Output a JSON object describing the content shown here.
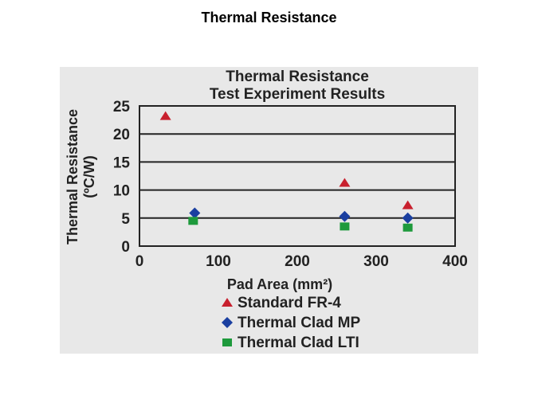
{
  "slide": {
    "title": "Thermal Resistance"
  },
  "chart_data": {
    "type": "scatter",
    "title_lines": [
      "Thermal Resistance",
      "Test Experiment Results"
    ],
    "xlabel": "Pad Area (mm²)",
    "ylabel_lines": [
      "Thermal Resistance",
      "(ºC/W)"
    ],
    "xlim": [
      0,
      400
    ],
    "ylim": [
      0,
      25
    ],
    "xticks": [
      0,
      100,
      200,
      300,
      400
    ],
    "yticks": [
      0,
      5,
      10,
      15,
      20,
      25
    ],
    "grid": "horizontal",
    "legend_position": "bottom",
    "series": [
      {
        "name": "Standard FR-4",
        "marker": "triangle",
        "color": "#c8202e",
        "points": [
          {
            "x": 33,
            "y": 23.2
          },
          {
            "x": 260,
            "y": 11.3
          },
          {
            "x": 340,
            "y": 7.3
          }
        ]
      },
      {
        "name": "Thermal Clad MP",
        "marker": "diamond",
        "color": "#1a3fa0",
        "points": [
          {
            "x": 70,
            "y": 5.9
          },
          {
            "x": 260,
            "y": 5.3
          },
          {
            "x": 340,
            "y": 5.0
          }
        ]
      },
      {
        "name": "Thermal Clad LTI",
        "marker": "square",
        "color": "#1e9a3c",
        "points": [
          {
            "x": 68,
            "y": 4.5
          },
          {
            "x": 260,
            "y": 3.5
          },
          {
            "x": 340,
            "y": 3.3
          }
        ]
      }
    ]
  }
}
